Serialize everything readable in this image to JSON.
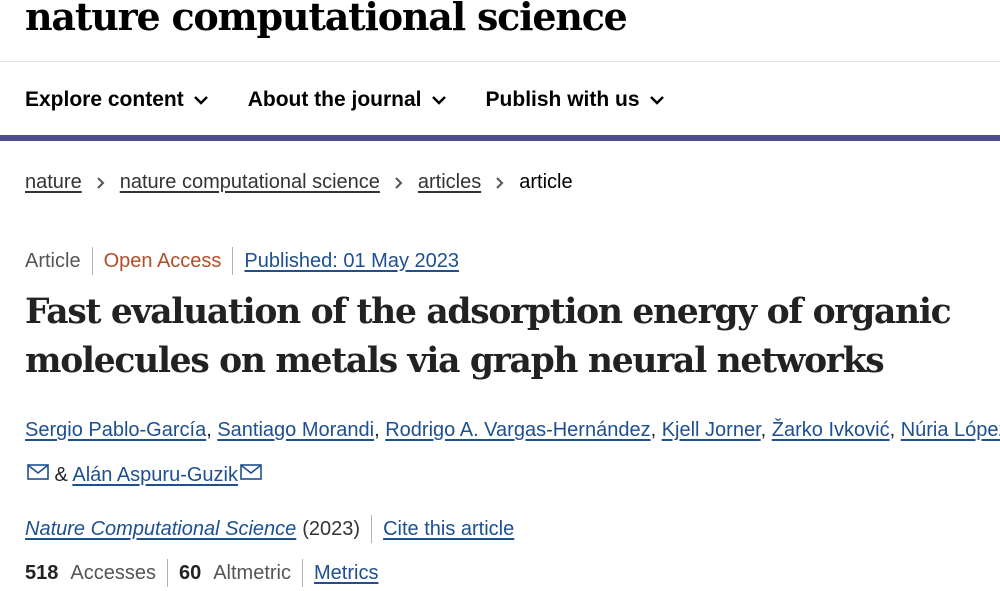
{
  "site": {
    "brand": "nature computational science"
  },
  "nav": {
    "items": [
      {
        "label": "Explore content"
      },
      {
        "label": "About the journal"
      },
      {
        "label": "Publish with us"
      }
    ]
  },
  "breadcrumb": {
    "items": [
      "nature",
      "nature computational science",
      "articles"
    ],
    "current": "article"
  },
  "article": {
    "type": "Article",
    "access": "Open Access",
    "published": "Published: 01 May 2023",
    "title": "Fast evaluation of the adsorption energy of organic molecules on metals via graph neural networks",
    "authors": [
      "Sergio Pablo-García",
      "Santiago Morandi",
      "Rodrigo A. Vargas-Hernández",
      "Kjell Jorner",
      "Žarko Ivković",
      "Núria López",
      "Alán Aspuru-Guzik"
    ],
    "author_separator": ", ",
    "and": " & ",
    "journal": "Nature Computational Science",
    "year": "(2023)",
    "cite_label": "Cite this article",
    "accesses_count": "518",
    "accesses_label": "Accesses",
    "altmetric_count": "60",
    "altmetric_label": "Altmetric",
    "metrics_label": "Metrics"
  },
  "icons": {
    "nav_chevron": "chevron-down-icon",
    "breadcrumb_separator": "chevron-right-icon",
    "corresponding_author": "mail-icon"
  },
  "colors": {
    "link": "#1d4f91",
    "open_access": "#b24d28",
    "nav_bar": "#4e4e8f"
  }
}
